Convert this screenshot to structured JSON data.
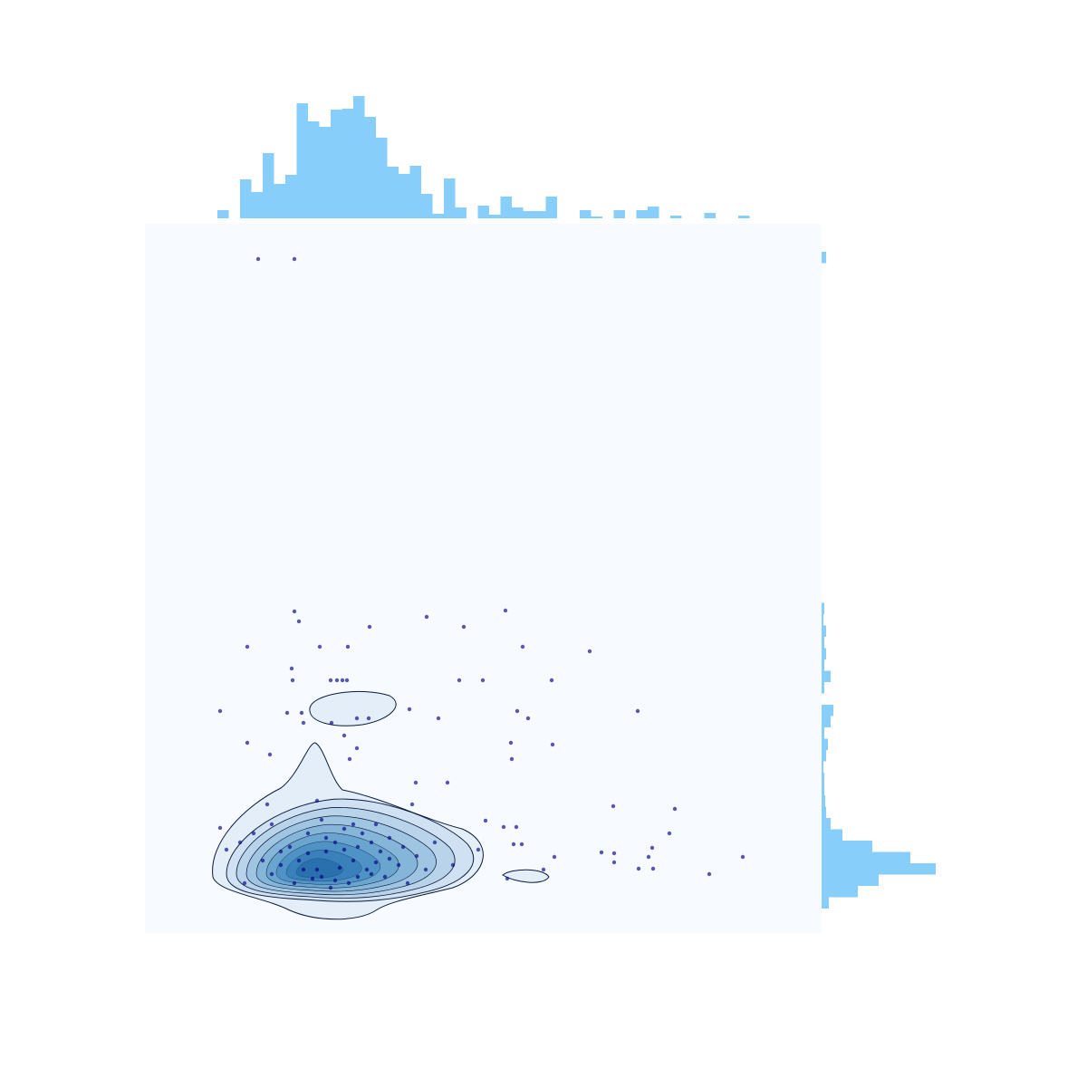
{
  "chart_data": [
    {
      "type": "scatter",
      "color": "#000080",
      "opacity": 0.65,
      "xlim": [
        0,
        747
      ],
      "ylim": [
        0,
        783
      ],
      "x": [
        125,
        165,
        165,
        170,
        248,
        311,
        352,
        398,
        113,
        193,
        224,
        417,
        491,
        162,
        163,
        205,
        212,
        218,
        223,
        347,
        373,
        449,
        83,
        157,
        173,
        292,
        411,
        544,
        175,
        206,
        234,
        247,
        324,
        423,
        113,
        220,
        234,
        404,
        450,
        138,
        226,
        405,
        299,
        334,
        517,
        585,
        135,
        190,
        295,
        376,
        396,
        410,
        579,
        83,
        504,
        518,
        556,
        452,
        560,
        518,
        545,
        561,
        623,
        660,
        407,
        416,
        368,
        90,
        105,
        120,
        110,
        140,
        170,
        190,
        200,
        210,
        230,
        240,
        250,
        260,
        280,
        300,
        140,
        160,
        180,
        195,
        220,
        235,
        255,
        270,
        185,
        205,
        225,
        245,
        165,
        150,
        130,
        310,
        320,
        340,
        290,
        400,
        440,
        175,
        195,
        215,
        235,
        255,
        265,
        180,
        220,
        200,
        250,
        285,
        150,
        230,
        270,
        210
      ],
      "y": [
        744,
        744,
        355,
        344,
        338,
        349,
        338,
        356,
        316,
        316,
        316,
        316,
        311,
        292,
        279,
        279,
        279,
        279,
        279,
        279,
        279,
        279,
        245,
        243,
        243,
        247,
        245,
        245,
        232,
        232,
        237,
        237,
        237,
        237,
        210,
        218,
        204,
        210,
        208,
        197,
        192,
        192,
        166,
        166,
        140,
        137,
        142,
        146,
        142,
        124,
        117,
        117,
        110,
        116,
        89,
        88,
        84,
        84,
        94,
        78,
        71,
        71,
        65,
        84,
        98,
        98,
        92,
        92,
        100,
        110,
        55,
        65,
        80,
        70,
        90,
        100,
        80,
        110,
        65,
        90,
        75,
        85,
        120,
        95,
        110,
        125,
        115,
        95,
        120,
        105,
        60,
        50,
        55,
        70,
        55,
        75,
        80,
        70,
        100,
        75,
        55,
        60,
        70,
        70,
        62,
        72,
        62,
        78,
        62,
        88,
        92,
        105,
        100,
        95,
        90,
        120,
        82,
        58
      ]
    },
    {
      "type": "histogram",
      "orientation": "vertical",
      "color": "#87cefa",
      "ylim": [
        0,
        140
      ],
      "bins": [
        80,
        92.5,
        105,
        117.5,
        130,
        142.5,
        155,
        167.5,
        180,
        192.5,
        205,
        217.5,
        230,
        242.5,
        255,
        267.5,
        280,
        292.5,
        305,
        317.5,
        330,
        342.5,
        355,
        367.5,
        380,
        392.5,
        405,
        417.5,
        430,
        442.5,
        455,
        467.5,
        480,
        492.5,
        505,
        517.5,
        530,
        542.5,
        555,
        567.5,
        580,
        592.5,
        605,
        617.5,
        630,
        642.5,
        655,
        667.5
      ],
      "counts": [
        9,
        0,
        43,
        29,
        72,
        38,
        48,
        127,
        107,
        101,
        120,
        121,
        135,
        112,
        89,
        57,
        49,
        58,
        27,
        5,
        44,
        12,
        0,
        14,
        4,
        24,
        12,
        8,
        8,
        24,
        0,
        0,
        9,
        2,
        0,
        9,
        0,
        9,
        13,
        0,
        3,
        0,
        0,
        6,
        0,
        0,
        3
      ]
    },
    {
      "type": "histogram",
      "orientation": "horizontal",
      "color": "#87cefa",
      "xlim": [
        0,
        130
      ],
      "bins": [
        27,
        39.5,
        52,
        64.5,
        77,
        89.5,
        102,
        114.5,
        127,
        139.5,
        152,
        164.5,
        177,
        189.5,
        202,
        214.5,
        227,
        239.5,
        252,
        264.5,
        277,
        289.5,
        302,
        314.5,
        327,
        339.5,
        352,
        364.5,
        377,
        389.5,
        402,
        414.5,
        427,
        439.5,
        452,
        464.5,
        477,
        489.5,
        502,
        514.5,
        527,
        539.5,
        552,
        564.5,
        577,
        589.5,
        602,
        614.5,
        627,
        639.5,
        652,
        664.5,
        677,
        689.5,
        702,
        714.5,
        727,
        739.5,
        752
      ],
      "counts": [
        8,
        40,
        63,
        126,
        98,
        56,
        23,
        10,
        5,
        4,
        3,
        3,
        2,
        5,
        7,
        3,
        10,
        13,
        0,
        3,
        10,
        3,
        5,
        3,
        5,
        2,
        3,
        0,
        0,
        0,
        0,
        0,
        0,
        0,
        0,
        0,
        0,
        0,
        0,
        0,
        0,
        0,
        0,
        0,
        0,
        0,
        0,
        0,
        0,
        0,
        0,
        0,
        0,
        0,
        0,
        0,
        0,
        5
      ]
    }
  ]
}
